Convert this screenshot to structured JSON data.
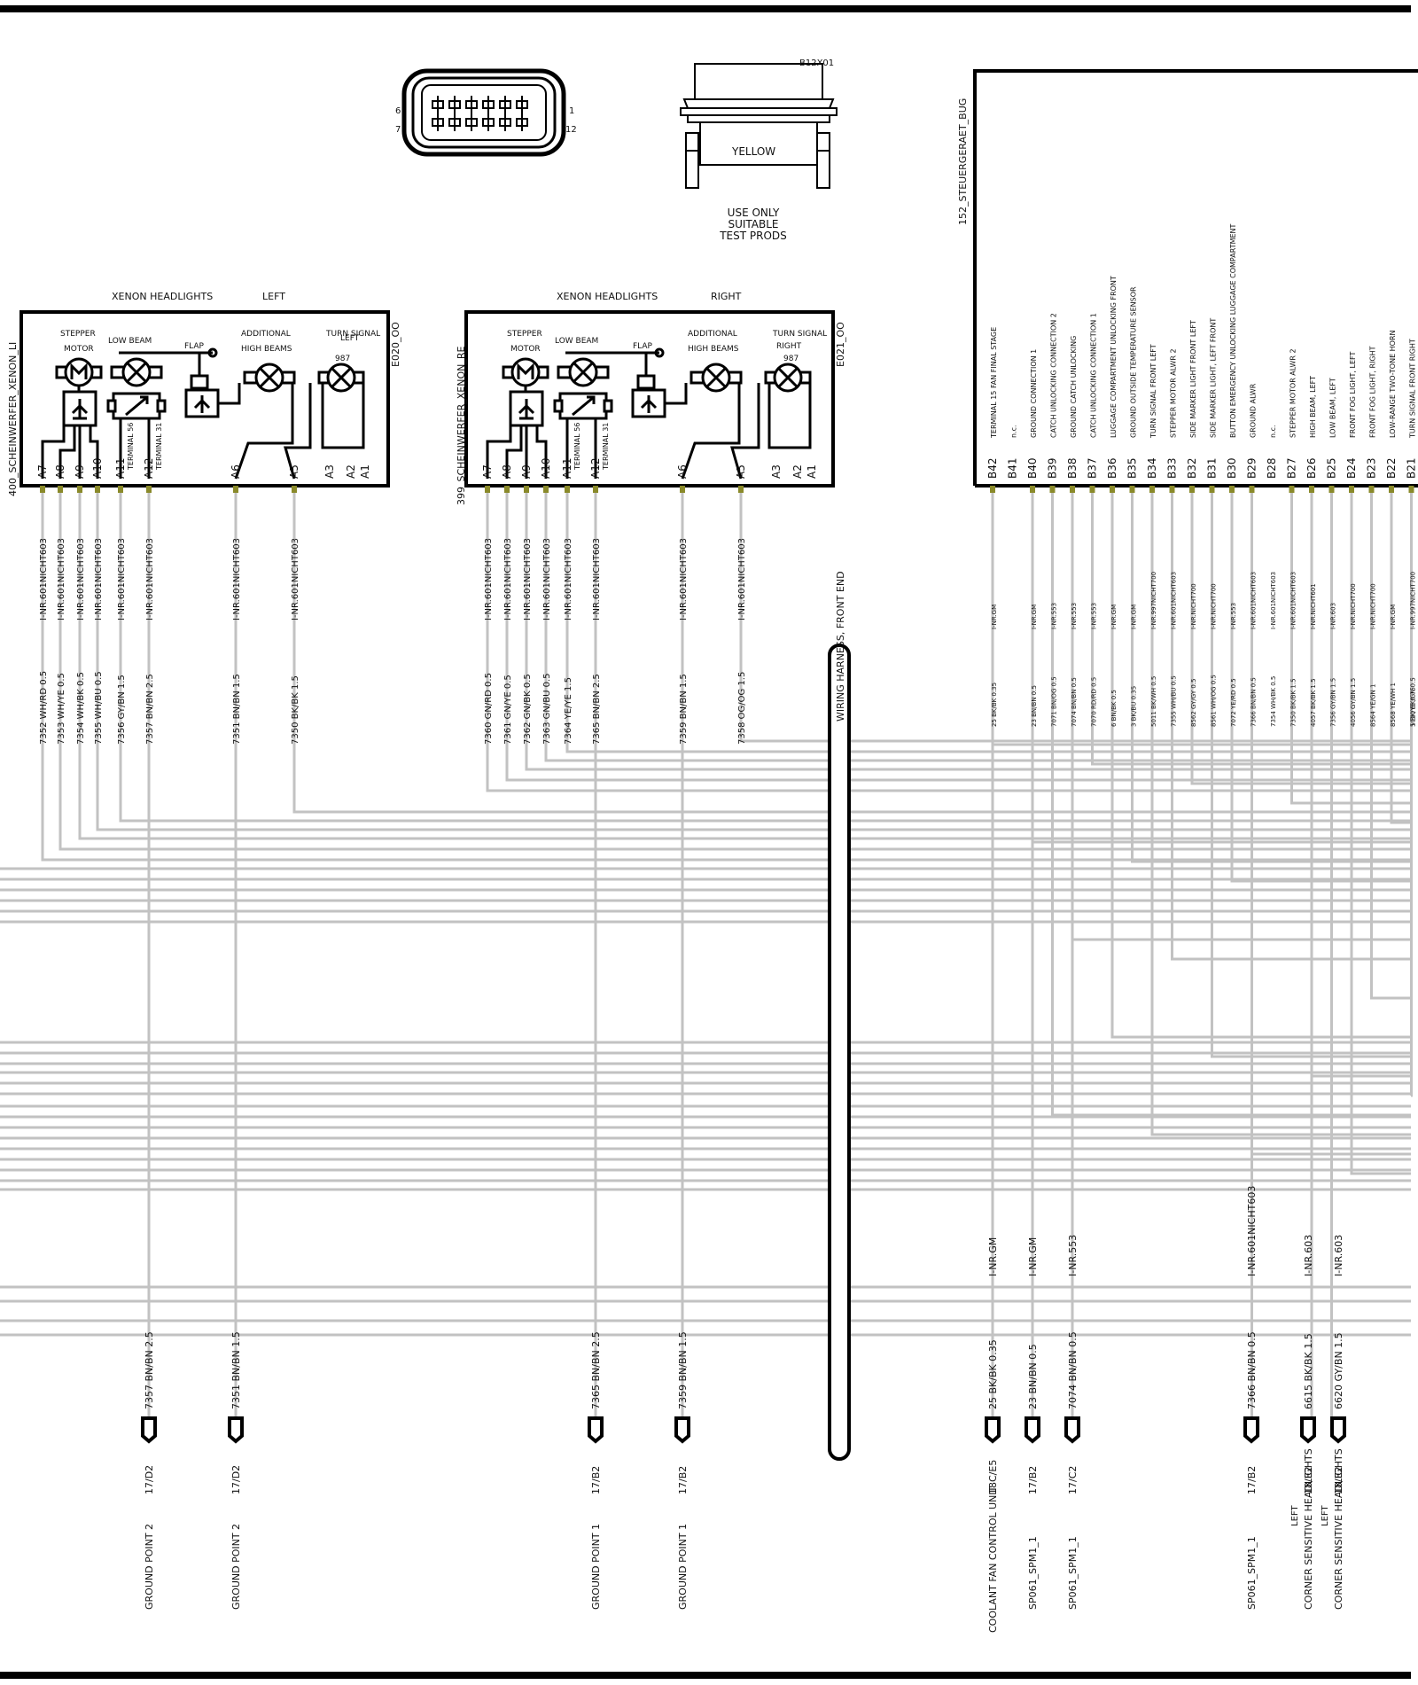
{
  "connector_view": {
    "pin_left_top": "6",
    "pin_left_bottom": "7",
    "pin_right_top": "1",
    "pin_right_bottom": "12",
    "part_id": "B12X01",
    "color": "YELLOW",
    "note_line1": "USE ONLY",
    "note_line2": "SUITABLE",
    "note_line3": "TEST PRODS"
  },
  "left_headlight": {
    "header_title": "XENON HEADLIGHTS",
    "header_side": "LEFT",
    "code": "E020_OO",
    "name": "400_SCHEINWERFER_XENON_LI",
    "labels": {
      "stepper": "STEPPER",
      "motor": "MOTOR",
      "low_beam": "LOW BEAM",
      "flap": "FLAP",
      "additional": "ADDITIONAL",
      "high_beams": "HIGH BEAMS",
      "turn_signal": "TURN SIGNAL",
      "side": "LEFT",
      "bulb_no": "987",
      "terminal56": "TERMINAL 56",
      "terminal31": "TERMINAL 31"
    },
    "pins": [
      "A7",
      "A8",
      "A9",
      "A10",
      "A11",
      "A12",
      "A6",
      "A5",
      "A3",
      "A2",
      "A1"
    ],
    "wire_codes": [
      "I-NR.601NICHT603",
      "I-NR.601NICHT603",
      "I-NR.601NICHT603",
      "I-NR.601NICHT603",
      "I-NR.601NICHT603",
      "I-NR.601NICHT603",
      "I-NR.601NICHT603",
      "I-NR.601NICHT603"
    ],
    "wire_colors": [
      "7352 WH/RD 0.5",
      "7353 WH/YE 0.5",
      "7354 WH/BK 0.5",
      "7355 WH/BU 0.5",
      "7356 GY/BN 1.5",
      "7357 BN/BN 2.5",
      "7351 BN/BN 1.5",
      "7350 BK/BK 1.5"
    ]
  },
  "right_headlight": {
    "header_title": "XENON HEADLIGHTS",
    "header_side": "RIGHT",
    "code": "E021_OO",
    "name": "399_SCHEINWERFER_XENON_RE",
    "labels": {
      "stepper": "STEPPER",
      "motor": "MOTOR",
      "low_beam": "LOW BEAM",
      "flap": "FLAP",
      "additional": "ADDITIONAL",
      "high_beams": "HIGH BEAMS",
      "turn_signal": "TURN SIGNAL",
      "side": "RIGHT",
      "bulb_no": "987",
      "terminal56": "TERMINAL 56",
      "terminal31": "TERMINAL 31"
    },
    "pins": [
      "A7",
      "A8",
      "A9",
      "A10",
      "A11",
      "A12",
      "A6",
      "A5",
      "A3",
      "A2",
      "A1"
    ],
    "wire_codes": [
      "I-NR.601NICHT603",
      "I-NR.601NICHT603",
      "I-NR.601NICHT603",
      "I-NR.601NICHT603",
      "I-NR.601NICHT603",
      "I-NR.601NICHT603",
      "I-NR.601NICHT603",
      "I-NR.601NICHT603"
    ],
    "wire_colors": [
      "7360 GN/RD 0.5",
      "7361 GN/YE 0.5",
      "7362 GN/BK 0.5",
      "7363 GN/BU 0.5",
      "7364 YE/YE 1.5",
      "7365 BN/BN 2.5",
      "7359 BN/BN 1.5",
      "7358 OG/OG 1.5"
    ]
  },
  "control_unit": {
    "name": "152_STEUERGERAET_BUG",
    "pins": [
      "B42",
      "B41",
      "B40",
      "B39",
      "B38",
      "B37",
      "B36",
      "B35",
      "B34",
      "B33",
      "B32",
      "B31",
      "B30",
      "B29",
      "B28",
      "B27",
      "B26",
      "B25",
      "B24",
      "B23",
      "B22",
      "B21"
    ],
    "functions": [
      "TERMINAL 15 FAN     FINAL STAGE",
      "n.c.",
      "GROUND CONNECTION  1",
      "CATCH        UNLOCKING    CONNECTION  2",
      "GROUND CATCH      UNLOCKING",
      "CATCH       UNLOCKING     CONNECTION  1",
      "LUGGAGE COMPARTMENT UNLOCKING FRONT",
      "GROUND  OUTSIDE TEMPERATURE SENSOR",
      "TURN SIGNAL     FRONT LEFT",
      "STEPPER   MOTOR    ALWR  2",
      "SIDE MARKER LIGHT   FRONT LEFT",
      "SIDE MARKER LIGHT, LEFT  FRONT",
      "BUTTON    EMERGENCY UNLOCKING   LUGGAGE COMPARTMENT",
      "GROUND  ALWR",
      "n.c.",
      "STEPPER     MOTOR      ALWR 2",
      "HIGH BEAM, LEFT",
      "LOW BEAM, LEFT",
      "FRONT FOG LIGHT, LEFT",
      "FRONT FOG LIGHT, RIGHT",
      "LOW-RANGE     TWO-TONE      HORN",
      "TURN SIGNAL    FRONT RIGHT"
    ],
    "wire_codes": [
      "I-NR.GM",
      "",
      "I-NR.GM",
      "I-NR.553",
      "I-NR.553",
      "I-NR.553",
      "I-NR.GM",
      "I-NR.GM",
      "I-NR.997NICHT700",
      "I-NR.601NICHT603",
      "I-NR.NICHT700",
      "I-NR.NICHT700",
      "I-NR.553",
      "I-NR.601NICHT603",
      "I-NR.601NICHT603",
      "I-NR.601NICHT603",
      "I-NR.NICHT601",
      "I-NR.603",
      "I-NR.NICHT700",
      "I-NR.NICHT700",
      "I-NR.GM",
      "I-NR.997NICHT700"
    ],
    "wire_colors": [
      "25 BK/BK 0.35",
      "",
      "23 BN/BN 0.5",
      "7071 BN/OG 0.5",
      "7074 BN/BN 0.5",
      "7070 RD/RD 0.5",
      "6 BN/BK 0.5",
      "3 BK/BU 0.35",
      "5011 BK/WH 0.5",
      "7355 WH/BU 0.5",
      "8562 GY/GY 0.5",
      "8561 WH/OG 0.5",
      "7072 YE/RD 0.5",
      "7366 BN/BN 0.5",
      "7354 WH/BK 0.5",
      "7350 BK/BK 1.5",
      "4057 BK/BK 1.5",
      "7356 GY/BN 1.5",
      "4056 GY/BN 1.5",
      "8564 YE/GN 1",
      "8568 YE/WH 1",
      "1 BK/YE 0.75",
      "5010 BK/GN 0.5"
    ]
  },
  "harness_label": "WIRING HARNESS, FRONT END",
  "bottom_connections": [
    {
      "wire_code": "",
      "wire": "7357 BN/BN 2.5",
      "ref": "17/D2",
      "dest": "GROUND POINT 2",
      "dest2": ""
    },
    {
      "wire_code": "",
      "wire": "7351 BN/BN 1.5",
      "ref": "17/D2",
      "dest": "GROUND POINT 2",
      "dest2": ""
    },
    {
      "wire_code": "",
      "wire": "7365 BN/BN 2.5",
      "ref": "17/B2",
      "dest": "GROUND POINT 1",
      "dest2": ""
    },
    {
      "wire_code": "",
      "wire": "7359 BN/BN 1.5",
      "ref": "17/B2",
      "dest": "GROUND POINT 1",
      "dest2": ""
    },
    {
      "wire_code": "I-NR.GM",
      "wire": "25 BK/BK 0.35",
      "ref": "18C/E5",
      "dest": "COOLANT FAN CONTROL UNIT",
      "dest2": ""
    },
    {
      "wire_code": "I-NR.GM",
      "wire": "23 BN/BN 0.5",
      "ref": "17/B2",
      "dest": "SP061_SPM1_1",
      "dest2": ""
    },
    {
      "wire_code": "I-NR.553",
      "wire": "7074 BN/BN 0.5",
      "ref": "17/C2",
      "dest": "SP061_SPM1_1",
      "dest2": ""
    },
    {
      "wire_code": "I-NR.601NICHT603",
      "wire": "7366 BN/BN 0.5",
      "ref": "17/B2",
      "dest": "SP061_SPM1_1",
      "dest2": ""
    },
    {
      "wire_code": "I-NR.603",
      "wire": "6615 BK/BK 1.5",
      "ref": "18/E2",
      "dest": "CORNER SENSITIVE HEADLIGHTS",
      "dest2": "LEFT"
    },
    {
      "wire_code": "I-NR.603",
      "wire": "6620 GY/BN 1.5",
      "ref": "18/E2",
      "dest": "CORNER SENSITIVE HEADLIGHTS",
      "dest2": "LEFT"
    }
  ]
}
